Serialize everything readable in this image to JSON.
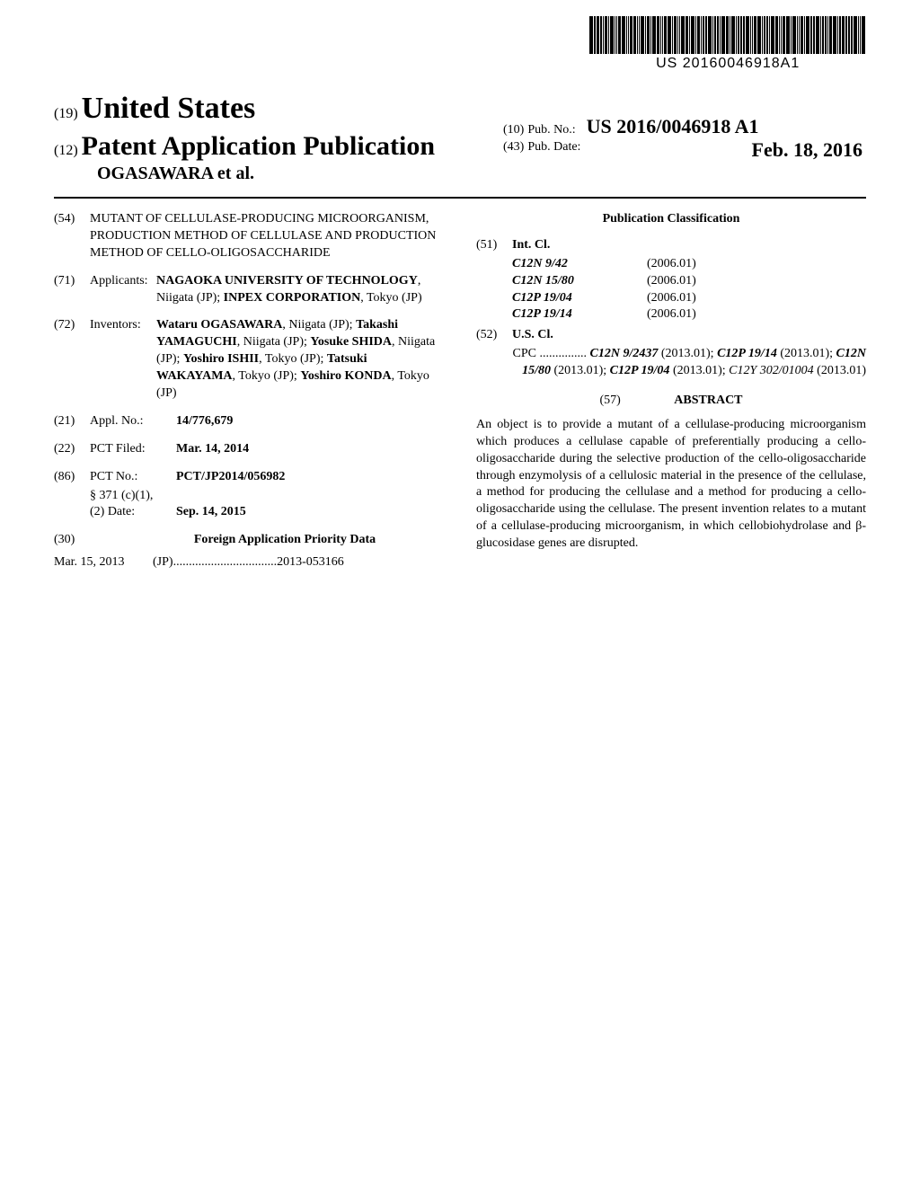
{
  "barcode_number": "US 20160046918A1",
  "header": {
    "n19": "(19)",
    "country": "United States",
    "n12": "(12)",
    "doc_type": "Patent Application Publication",
    "authors_line": "OGASAWARA et al.",
    "n10": "(10)",
    "pub_no_label": "Pub. No.:",
    "pub_no": "US 2016/0046918 A1",
    "n43": "(43)",
    "pub_date_label": "Pub. Date:",
    "pub_date": "Feb. 18, 2016"
  },
  "left": {
    "n54": "(54)",
    "title": "MUTANT OF CELLULASE-PRODUCING MICROORGANISM, PRODUCTION METHOD OF CELLULASE AND PRODUCTION METHOD OF CELLO-OLIGOSACCHARIDE",
    "n71": "(71)",
    "applicants_label": "Applicants:",
    "applicants_body_pre": "",
    "applicant1_name": "NAGAOKA UNIVERSITY OF TECHNOLOGY",
    "applicant1_loc": ", Niigata (JP); ",
    "applicant2_name": "INPEX CORPORATION",
    "applicant2_loc": ", Tokyo (JP)",
    "n72": "(72)",
    "inventors_label": "Inventors:",
    "inv1_name": "Wataru OGASAWARA",
    "inv1_loc": ", Niigata (JP); ",
    "inv2_name": "Takashi YAMAGUCHI",
    "inv2_loc": ", Niigata (JP); ",
    "inv3_name": "Yosuke SHIDA",
    "inv3_loc": ", Niigata (JP); ",
    "inv4_name": "Yoshiro ISHII",
    "inv4_loc": ", Tokyo (JP); ",
    "inv5_name": "Tatsuki WAKAYAMA",
    "inv5_loc": ", Tokyo (JP); ",
    "inv6_name": "Yoshiro KONDA",
    "inv6_loc": ", Tokyo (JP)",
    "n21": "(21)",
    "appl_label": "Appl. No.:",
    "appl_no": "14/776,679",
    "n22": "(22)",
    "pct_filed_label": "PCT Filed:",
    "pct_filed": "Mar. 14, 2014",
    "n86": "(86)",
    "pct_no_label": "PCT No.:",
    "pct_no": "PCT/JP2014/056982",
    "s371_label": "§ 371 (c)(1),",
    "s371_sub": "(2) Date:",
    "s371_date": "Sep. 14, 2015",
    "n30": "(30)",
    "priority_head": "Foreign Application Priority Data",
    "priority_date": "Mar. 15, 2013",
    "priority_cc": "(JP)",
    "priority_dots": " ................................. ",
    "priority_num": "2013-053166"
  },
  "right": {
    "pub_class_head": "Publication Classification",
    "n51": "(51)",
    "intcl_label": "Int. Cl.",
    "intcl": [
      {
        "code": "C12N 9/42",
        "ver": "(2006.01)"
      },
      {
        "code": "C12N 15/80",
        "ver": "(2006.01)"
      },
      {
        "code": "C12P 19/04",
        "ver": "(2006.01)"
      },
      {
        "code": "C12P 19/14",
        "ver": "(2006.01)"
      }
    ],
    "n52": "(52)",
    "uscl_label": "U.S. Cl.",
    "cpc_prefix": "CPC ............... ",
    "cpc_parts": [
      {
        "code": "C12N 9/2437",
        "suf": " (2013.01); "
      },
      {
        "code": "C12P 19/14",
        "suf": " (2013.01); "
      },
      {
        "code": "C12N 15/80",
        "suf": " (2013.01); "
      },
      {
        "code": "C12P 19/04",
        "suf": " (2013.01); "
      }
    ],
    "cpc_tail": "C12Y 302/01004",
    "cpc_tail_suf": " (2013.01)",
    "n57": "(57)",
    "abstract_head": "ABSTRACT",
    "abstract": "An object is to provide a mutant of a cellulase-producing microorganism which produces a cellulase capable of preferentially producing a cello-oligosaccharide during the selective production of the cello-oligosaccharide through enzymolysis of a cellulosic material in the presence of the cellulase, a method for producing the cellulase and a method for producing a cello-oligosaccharide using the cellulase. The present invention relates to a mutant of a cellulase-producing microorganism, in which cellobiohydrolase and β-glucosidase genes are disrupted."
  },
  "style": {
    "page_bg": "#ffffff",
    "text_color": "#000000",
    "barcode_widths": [
      3,
      1,
      3,
      1,
      1,
      2,
      1,
      3,
      1,
      1,
      2,
      3,
      1,
      1,
      2,
      2,
      1,
      1,
      3,
      1,
      2,
      1,
      3,
      2,
      1,
      1,
      2,
      3,
      1,
      2,
      1,
      1,
      3,
      2,
      1,
      3,
      1,
      2,
      1,
      1,
      2,
      3,
      1,
      1,
      2,
      1,
      3,
      2,
      1,
      3,
      1,
      1,
      2,
      1,
      3,
      1,
      1,
      2,
      3,
      1,
      2,
      1,
      1,
      3,
      2,
      1,
      1,
      2,
      3,
      1,
      3,
      1,
      1,
      2,
      1,
      3,
      1,
      2,
      3,
      1,
      1,
      2,
      1,
      2,
      3,
      1,
      1,
      3,
      1,
      2,
      1,
      3,
      1,
      1,
      3
    ],
    "barcode_gaps": 1
  }
}
